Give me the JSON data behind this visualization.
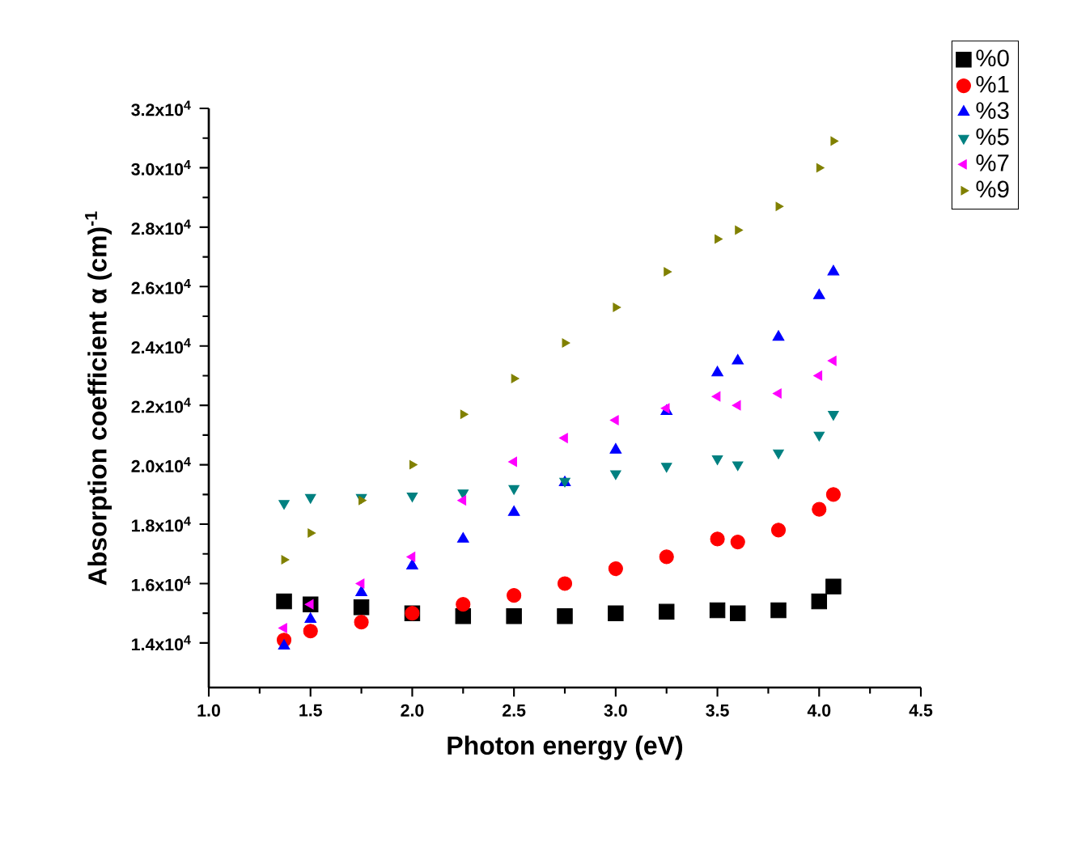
{
  "chart_data": {
    "type": "scatter",
    "xlabel": "Photon energy (eV)",
    "ylabel": "Absorption coefficient α (cm)$^{-1}$",
    "xlim": [
      1.0,
      4.5
    ],
    "xticks": [
      {
        "value": 1.0,
        "label": "1.0"
      },
      {
        "value": 1.5,
        "label": "1.5"
      },
      {
        "value": 2.0,
        "label": "2.0"
      },
      {
        "value": 2.5,
        "label": "2.5"
      },
      {
        "value": 3.0,
        "label": "3.0"
      },
      {
        "value": 3.5,
        "label": "3.5"
      },
      {
        "value": 4.0,
        "label": "4.0"
      },
      {
        "value": 4.5,
        "label": "4.5"
      }
    ],
    "ylim": [
      12500,
      32000
    ],
    "yticks": [
      {
        "value": 14000,
        "label": "1.4x10$^{4}$"
      },
      {
        "value": 16000,
        "label": "1.6x10$^{4}$"
      },
      {
        "value": 18000,
        "label": "1.8x10$^{4}$"
      },
      {
        "value": 20000,
        "label": "2.0x10$^{4}$"
      },
      {
        "value": 22000,
        "label": "2.2x10$^{4}$"
      },
      {
        "value": 24000,
        "label": "2.4x10$^{4}$"
      },
      {
        "value": 26000,
        "label": "2.6x10$^{4}$"
      },
      {
        "value": 28000,
        "label": "2.8x10$^{4}$"
      },
      {
        "value": 30000,
        "label": "3.0x10$^{4}$"
      },
      {
        "value": 32000,
        "label": "3.2x10$^{4}$"
      }
    ],
    "legend": "top right",
    "grid": false,
    "x": [
      1.37,
      1.5,
      1.75,
      2.0,
      2.25,
      2.5,
      2.75,
      3.0,
      3.25,
      3.5,
      3.6,
      3.8,
      4.0,
      4.07
    ],
    "series": [
      {
        "name": "%0",
        "color": "#000000",
        "marker": "square",
        "values": [
          15400,
          15300,
          15200,
          15000,
          14900,
          14900,
          14900,
          15000,
          15050,
          15100,
          15000,
          15100,
          15400,
          15900
        ]
      },
      {
        "name": "%1",
        "color": "#ff0000",
        "marker": "circle",
        "values": [
          14100,
          14400,
          14700,
          15000,
          15300,
          15600,
          16000,
          16500,
          16900,
          17500,
          17400,
          17800,
          18500,
          19000
        ]
      },
      {
        "name": "%3",
        "color": "#0000ff",
        "marker": "triangle",
        "values": [
          13900,
          14800,
          15700,
          16600,
          17500,
          18400,
          19400,
          20500,
          21800,
          23100,
          23500,
          24300,
          25700,
          26500
        ]
      },
      {
        "name": "%5",
        "color": "#008080",
        "marker": "triangle-down",
        "values": [
          18700,
          18900,
          18900,
          18950,
          19050,
          19200,
          19450,
          19700,
          19950,
          20200,
          20000,
          20400,
          21000,
          21700
        ]
      },
      {
        "name": "%7",
        "color": "#ff00ff",
        "marker": "triangle-left",
        "values": [
          14500,
          15300,
          16000,
          16900,
          18800,
          20100,
          20900,
          21500,
          21900,
          22300,
          22000,
          22400,
          23000,
          23500
        ]
      },
      {
        "name": "%9",
        "color": "#808000",
        "marker": "triangle-right",
        "values": [
          16800,
          17700,
          18800,
          20000,
          21700,
          22900,
          24100,
          25300,
          26500,
          27600,
          27900,
          28700,
          30000,
          30900
        ]
      }
    ]
  }
}
